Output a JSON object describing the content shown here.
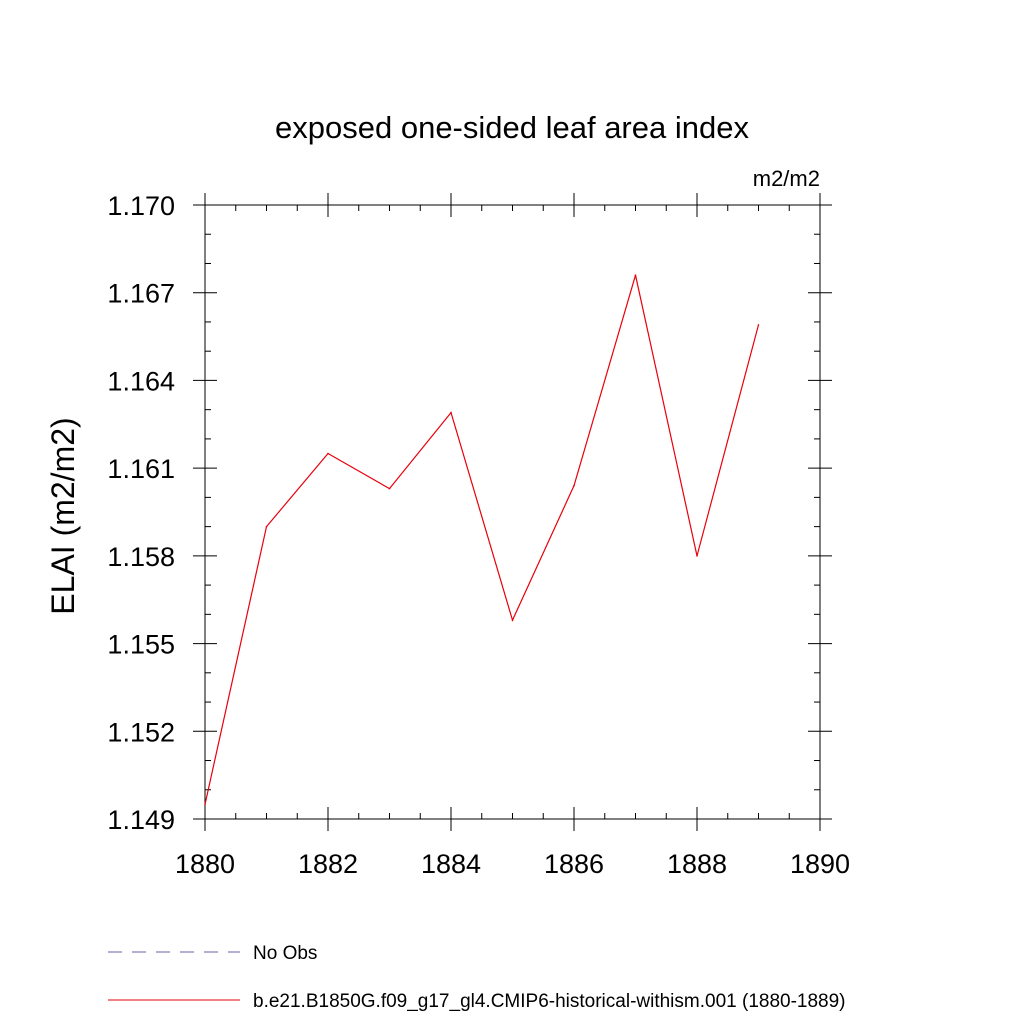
{
  "chart_data": {
    "type": "line",
    "title": "exposed one-sided leaf area index",
    "units_label": "m2/m2",
    "ylabel": "ELAI  (m2/m2)",
    "xlabel": "",
    "xlim": [
      1880,
      1890
    ],
    "ylim": [
      1.149,
      1.17
    ],
    "x_ticks": [
      1880,
      1882,
      1884,
      1886,
      1888,
      1890
    ],
    "y_ticks": [
      "1.149",
      "1.152",
      "1.155",
      "1.158",
      "1.161",
      "1.164",
      "1.167",
      "1.170"
    ],
    "grid": false,
    "legend_position": "bottom",
    "series": [
      {
        "name": "No Obs",
        "color": "#6b5fa8",
        "dash": true,
        "x": [],
        "values": []
      },
      {
        "name": "b.e21.B1850G.f09_g17_gl4.CMIP6-historical-withism.001 (1880-1889)",
        "color": "#e8000b",
        "dash": false,
        "x": [
          1880,
          1881,
          1882,
          1883,
          1884,
          1885,
          1886,
          1887,
          1888,
          1889
        ],
        "values": [
          1.1495,
          1.159,
          1.1615,
          1.1603,
          1.1629,
          1.1558,
          1.1604,
          1.1676,
          1.158,
          1.1659
        ]
      }
    ]
  }
}
